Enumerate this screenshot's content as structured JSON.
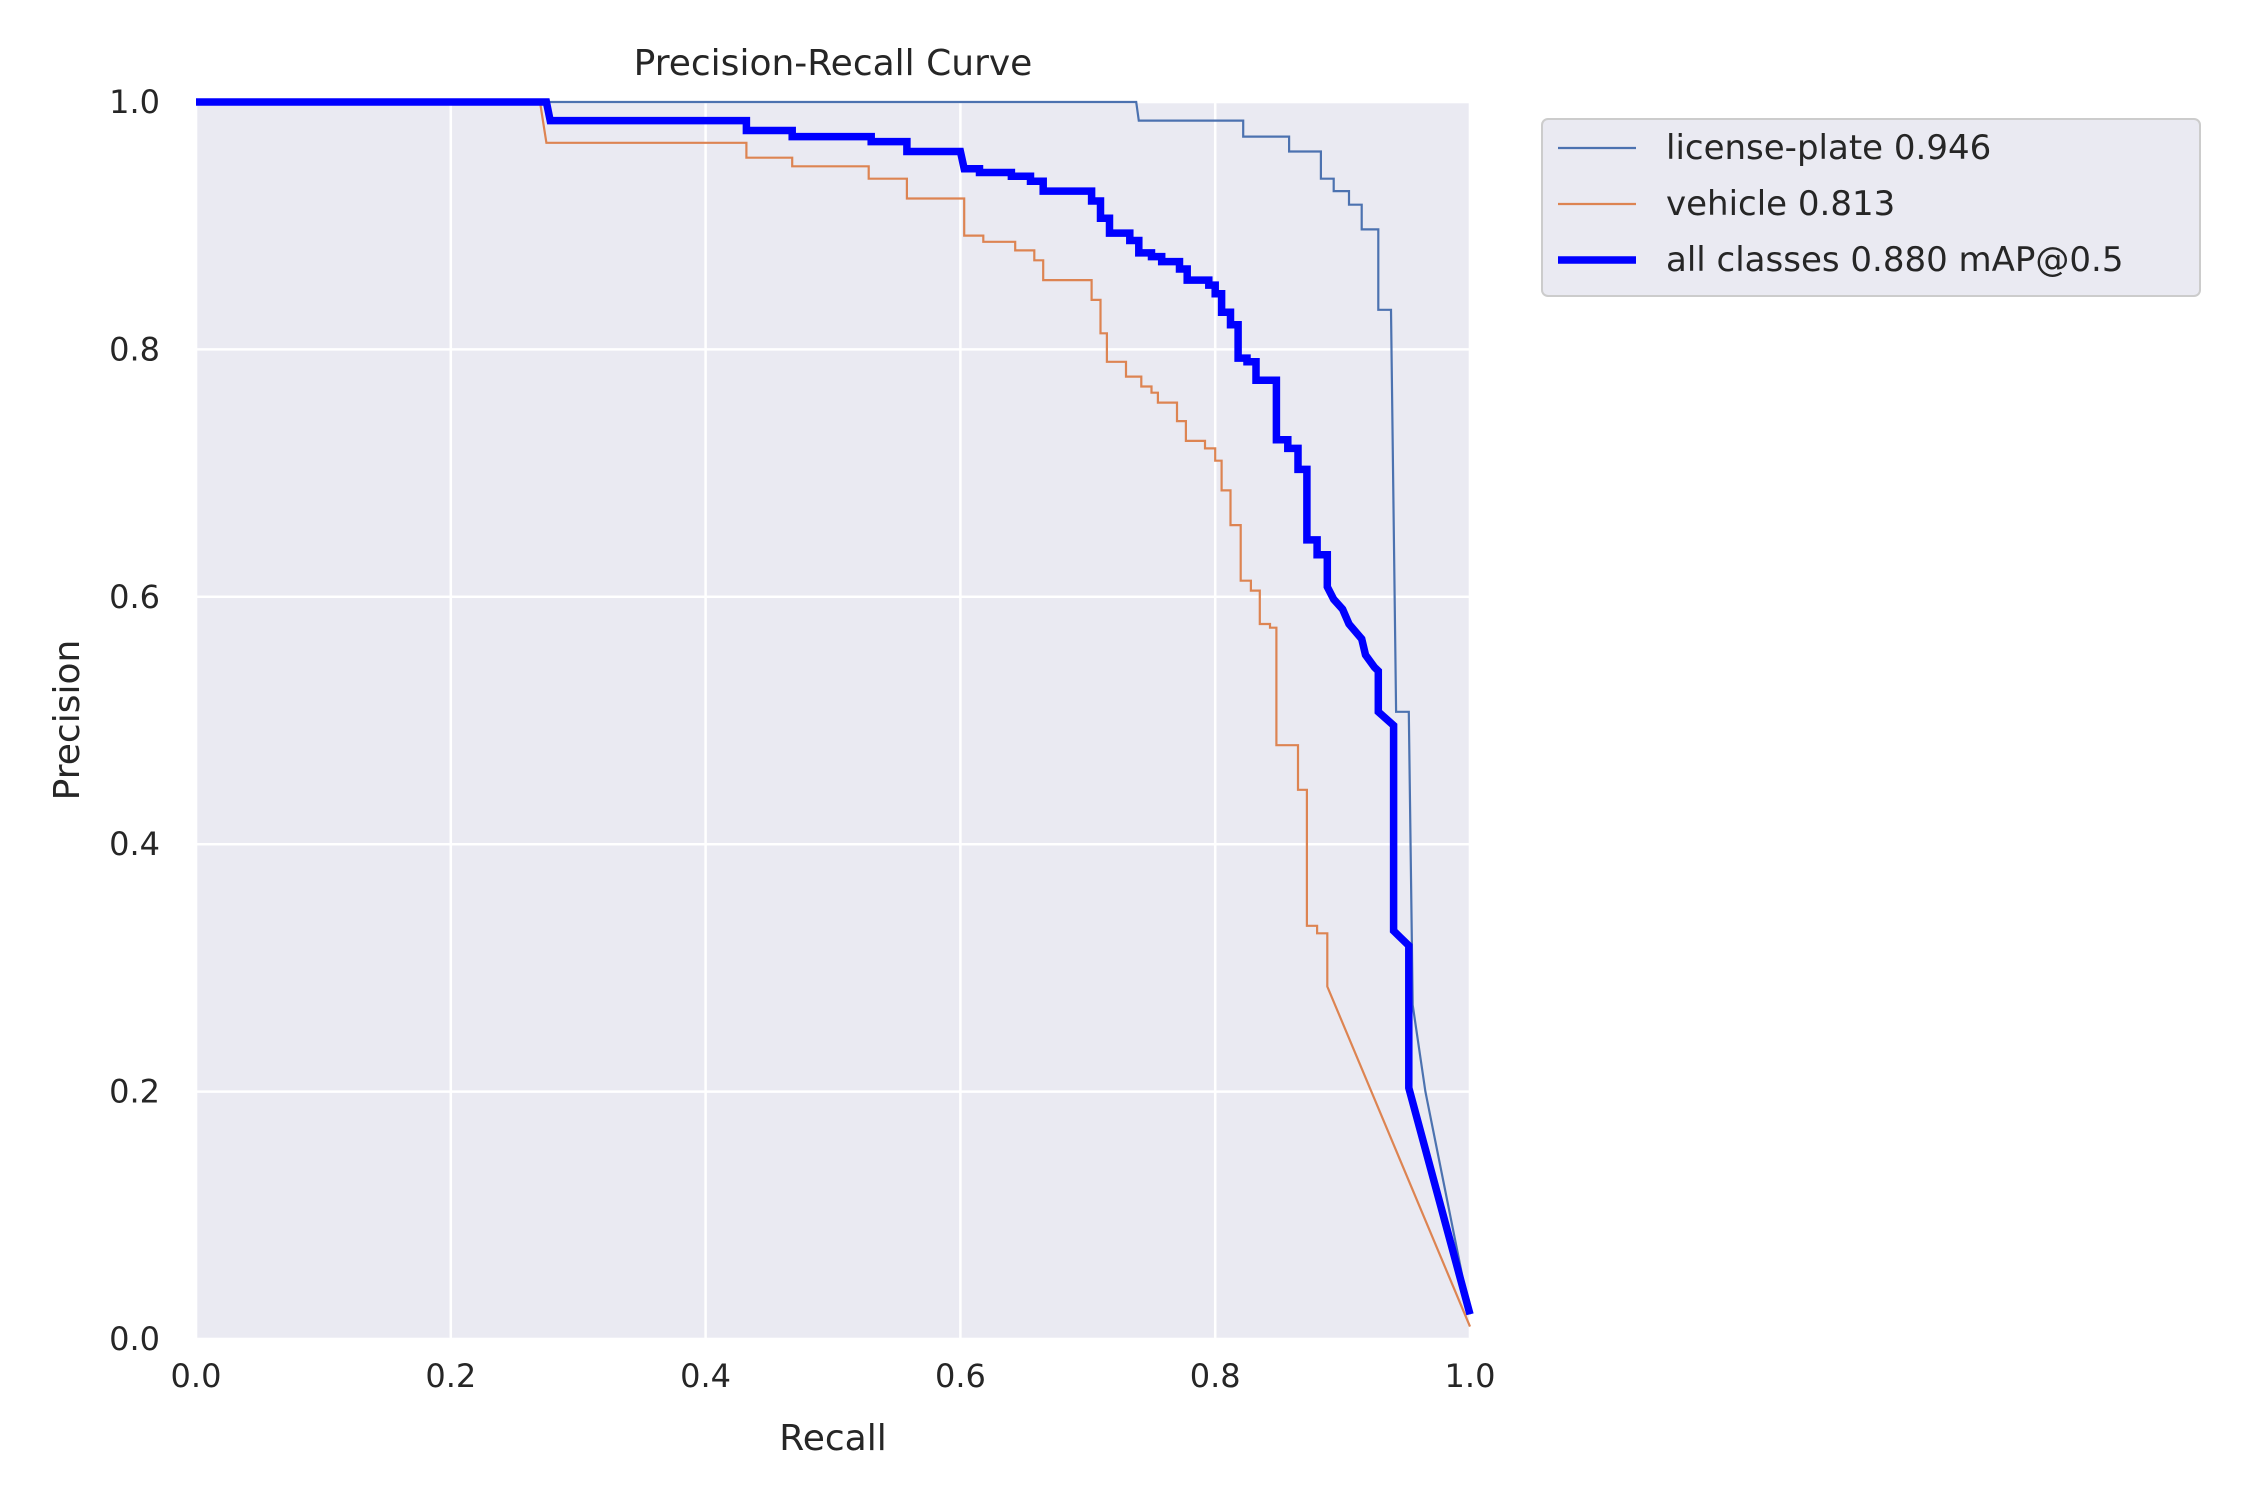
{
  "chart_data": {
    "type": "line",
    "title": "Precision-Recall Curve",
    "xlabel": "Recall",
    "ylabel": "Precision",
    "xlim": [
      0,
      1
    ],
    "ylim": [
      0,
      1
    ],
    "xticks": [
      "0.0",
      "0.2",
      "0.4",
      "0.6",
      "0.8",
      "1.0"
    ],
    "yticks": [
      "0.0",
      "0.2",
      "0.4",
      "0.6",
      "0.8",
      "1.0"
    ],
    "grid": true,
    "legend_position": "outside-top-right",
    "series": [
      {
        "name": "license-plate 0.946",
        "color": "#4c72b0",
        "width": "thin",
        "points": [
          [
            0,
            1
          ],
          [
            0.738,
            1
          ],
          [
            0.74,
            0.985
          ],
          [
            0.822,
            0.985
          ],
          [
            0.822,
            0.972
          ],
          [
            0.858,
            0.972
          ],
          [
            0.858,
            0.96
          ],
          [
            0.883,
            0.96
          ],
          [
            0.883,
            0.938
          ],
          [
            0.893,
            0.938
          ],
          [
            0.893,
            0.928
          ],
          [
            0.905,
            0.928
          ],
          [
            0.905,
            0.917
          ],
          [
            0.915,
            0.917
          ],
          [
            0.915,
            0.897
          ],
          [
            0.928,
            0.897
          ],
          [
            0.928,
            0.832
          ],
          [
            0.938,
            0.832
          ],
          [
            0.942,
            0.507
          ],
          [
            0.952,
            0.507
          ],
          [
            0.955,
            0.27
          ],
          [
            0.965,
            0.2
          ],
          [
            1,
            0.02
          ]
        ]
      },
      {
        "name": "vehicle 0.813",
        "color": "#dd8452",
        "width": "thin",
        "points": [
          [
            0,
            1
          ],
          [
            0.27,
            1
          ],
          [
            0.275,
            0.967
          ],
          [
            0.432,
            0.967
          ],
          [
            0.432,
            0.955
          ],
          [
            0.468,
            0.955
          ],
          [
            0.468,
            0.948
          ],
          [
            0.528,
            0.948
          ],
          [
            0.528,
            0.938
          ],
          [
            0.558,
            0.938
          ],
          [
            0.558,
            0.922
          ],
          [
            0.603,
            0.922
          ],
          [
            0.603,
            0.892
          ],
          [
            0.618,
            0.892
          ],
          [
            0.618,
            0.887
          ],
          [
            0.643,
            0.887
          ],
          [
            0.643,
            0.88
          ],
          [
            0.658,
            0.88
          ],
          [
            0.658,
            0.872
          ],
          [
            0.665,
            0.872
          ],
          [
            0.665,
            0.856
          ],
          [
            0.703,
            0.856
          ],
          [
            0.703,
            0.84
          ],
          [
            0.71,
            0.84
          ],
          [
            0.71,
            0.813
          ],
          [
            0.715,
            0.813
          ],
          [
            0.715,
            0.79
          ],
          [
            0.73,
            0.79
          ],
          [
            0.73,
            0.778
          ],
          [
            0.742,
            0.778
          ],
          [
            0.742,
            0.77
          ],
          [
            0.75,
            0.77
          ],
          [
            0.75,
            0.765
          ],
          [
            0.755,
            0.765
          ],
          [
            0.755,
            0.757
          ],
          [
            0.77,
            0.757
          ],
          [
            0.77,
            0.742
          ],
          [
            0.777,
            0.742
          ],
          [
            0.777,
            0.726
          ],
          [
            0.792,
            0.726
          ],
          [
            0.792,
            0.72
          ],
          [
            0.8,
            0.72
          ],
          [
            0.8,
            0.71
          ],
          [
            0.805,
            0.71
          ],
          [
            0.805,
            0.686
          ],
          [
            0.812,
            0.686
          ],
          [
            0.812,
            0.658
          ],
          [
            0.82,
            0.658
          ],
          [
            0.82,
            0.613
          ],
          [
            0.828,
            0.613
          ],
          [
            0.828,
            0.605
          ],
          [
            0.835,
            0.605
          ],
          [
            0.835,
            0.578
          ],
          [
            0.843,
            0.578
          ],
          [
            0.843,
            0.575
          ],
          [
            0.848,
            0.575
          ],
          [
            0.848,
            0.48
          ],
          [
            0.865,
            0.48
          ],
          [
            0.865,
            0.444
          ],
          [
            0.872,
            0.444
          ],
          [
            0.872,
            0.334
          ],
          [
            0.88,
            0.334
          ],
          [
            0.88,
            0.328
          ],
          [
            0.888,
            0.328
          ],
          [
            0.888,
            0.285
          ],
          [
            1,
            0.01
          ]
        ]
      },
      {
        "name": "all classes 0.880 mAP@0.5",
        "color": "#0000ff",
        "width": "thick",
        "points": [
          [
            0,
            1
          ],
          [
            0.275,
            1
          ],
          [
            0.278,
            0.985
          ],
          [
            0.432,
            0.985
          ],
          [
            0.432,
            0.977
          ],
          [
            0.468,
            0.977
          ],
          [
            0.468,
            0.972
          ],
          [
            0.53,
            0.972
          ],
          [
            0.53,
            0.968
          ],
          [
            0.558,
            0.968
          ],
          [
            0.558,
            0.96
          ],
          [
            0.6,
            0.96
          ],
          [
            0.603,
            0.946
          ],
          [
            0.615,
            0.946
          ],
          [
            0.615,
            0.943
          ],
          [
            0.64,
            0.943
          ],
          [
            0.64,
            0.94
          ],
          [
            0.655,
            0.94
          ],
          [
            0.655,
            0.936
          ],
          [
            0.665,
            0.936
          ],
          [
            0.665,
            0.928
          ],
          [
            0.703,
            0.928
          ],
          [
            0.703,
            0.92
          ],
          [
            0.71,
            0.92
          ],
          [
            0.71,
            0.906
          ],
          [
            0.717,
            0.906
          ],
          [
            0.717,
            0.894
          ],
          [
            0.733,
            0.894
          ],
          [
            0.733,
            0.888
          ],
          [
            0.74,
            0.888
          ],
          [
            0.74,
            0.878
          ],
          [
            0.75,
            0.878
          ],
          [
            0.75,
            0.875
          ],
          [
            0.758,
            0.875
          ],
          [
            0.758,
            0.871
          ],
          [
            0.772,
            0.871
          ],
          [
            0.772,
            0.865
          ],
          [
            0.778,
            0.865
          ],
          [
            0.778,
            0.856
          ],
          [
            0.795,
            0.856
          ],
          [
            0.795,
            0.852
          ],
          [
            0.8,
            0.852
          ],
          [
            0.8,
            0.845
          ],
          [
            0.805,
            0.845
          ],
          [
            0.805,
            0.83
          ],
          [
            0.812,
            0.83
          ],
          [
            0.812,
            0.82
          ],
          [
            0.818,
            0.82
          ],
          [
            0.818,
            0.793
          ],
          [
            0.825,
            0.793
          ],
          [
            0.825,
            0.79
          ],
          [
            0.832,
            0.79
          ],
          [
            0.832,
            0.775
          ],
          [
            0.848,
            0.775
          ],
          [
            0.848,
            0.727
          ],
          [
            0.857,
            0.727
          ],
          [
            0.857,
            0.72
          ],
          [
            0.865,
            0.72
          ],
          [
            0.865,
            0.703
          ],
          [
            0.872,
            0.703
          ],
          [
            0.872,
            0.646
          ],
          [
            0.88,
            0.646
          ],
          [
            0.88,
            0.634
          ],
          [
            0.888,
            0.634
          ],
          [
            0.888,
            0.608
          ],
          [
            0.893,
            0.598
          ],
          [
            0.9,
            0.59
          ],
          [
            0.905,
            0.578
          ],
          [
            0.915,
            0.566
          ],
          [
            0.918,
            0.553
          ],
          [
            0.925,
            0.543
          ],
          [
            0.928,
            0.54
          ],
          [
            0.928,
            0.507
          ],
          [
            0.94,
            0.496
          ],
          [
            0.94,
            0.33
          ],
          [
            0.945,
            0.325
          ],
          [
            0.952,
            0.318
          ],
          [
            0.952,
            0.203
          ],
          [
            1,
            0.02
          ]
        ]
      }
    ]
  }
}
